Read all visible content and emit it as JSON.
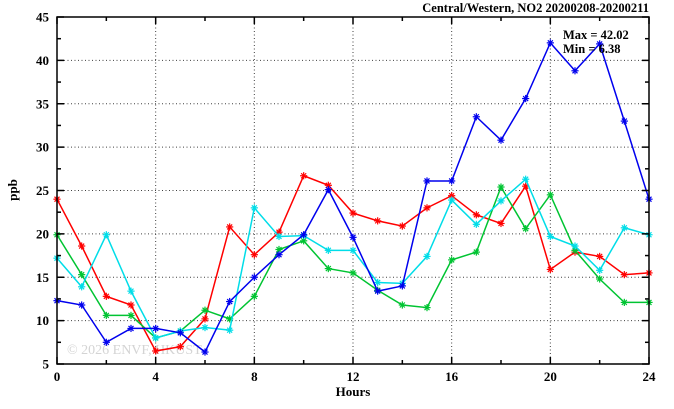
{
  "title": "Central/Western, NO2 20200208-20200211",
  "watermark": "© 2026 ENVF, HKUST",
  "annotation": {
    "max_label": "Max = 42.02",
    "min_label": "Min = 6.38"
  },
  "chart_data": {
    "type": "line",
    "title": "Central/Western, NO2 20200208-20200211",
    "xlabel": "Hours",
    "ylabel": "ppb",
    "xlim": [
      0,
      24
    ],
    "ylim": [
      5,
      45
    ],
    "grid": true,
    "legend": "none",
    "marker": "star",
    "x_major_ticks": [
      0,
      4,
      8,
      12,
      16,
      20,
      24
    ],
    "x_minor_ticks": [
      2,
      6,
      10,
      14,
      18,
      22
    ],
    "y_major_ticks": [
      5,
      10,
      15,
      20,
      25,
      30,
      35,
      40,
      45
    ],
    "y_minor_ticks": [
      7.5,
      12.5,
      17.5,
      22.5,
      27.5,
      32.5,
      37.5,
      42.5
    ],
    "x": [
      0,
      1,
      2,
      3,
      4,
      5,
      6,
      7,
      8,
      9,
      10,
      11,
      12,
      13,
      14,
      15,
      16,
      17,
      18,
      19,
      20,
      21,
      22,
      23,
      24
    ],
    "series": [
      {
        "name": "red",
        "color": "#ff0000",
        "values": [
          24.0,
          18.6,
          12.8,
          11.8,
          6.5,
          7.0,
          10.2,
          20.8,
          17.6,
          20.2,
          26.7,
          25.6,
          22.4,
          21.5,
          20.9,
          23.0,
          24.4,
          22.2,
          21.2,
          25.5,
          15.9,
          17.9,
          17.4,
          15.3,
          15.5
        ]
      },
      {
        "name": "green",
        "color": "#00c432",
        "values": [
          19.9,
          15.3,
          10.6,
          10.6,
          8.0,
          8.8,
          11.2,
          10.2,
          12.8,
          18.2,
          19.2,
          16.0,
          15.5,
          13.5,
          11.8,
          11.5,
          17.0,
          17.9,
          25.4,
          20.6,
          24.5,
          18.1,
          14.8,
          12.1,
          12.1
        ]
      },
      {
        "name": "cyan",
        "color": "#00dde8",
        "values": [
          17.2,
          13.9,
          19.9,
          13.4,
          8.0,
          8.8,
          9.2,
          8.9,
          23.0,
          19.7,
          19.8,
          18.1,
          18.1,
          14.4,
          14.3,
          17.4,
          23.9,
          21.1,
          23.8,
          26.3,
          19.7,
          18.6,
          15.8,
          20.7,
          19.9
        ]
      },
      {
        "name": "blue",
        "color": "#0000ee",
        "values": [
          12.3,
          11.8,
          7.5,
          9.1,
          9.1,
          8.6,
          6.38,
          12.2,
          15.0,
          17.6,
          19.9,
          25.1,
          19.6,
          13.4,
          14.0,
          26.1,
          26.1,
          33.5,
          30.8,
          35.6,
          42.02,
          38.8,
          41.9,
          33.0,
          24.0
        ]
      }
    ],
    "stats": {
      "max": 42.02,
      "min": 6.38
    }
  }
}
